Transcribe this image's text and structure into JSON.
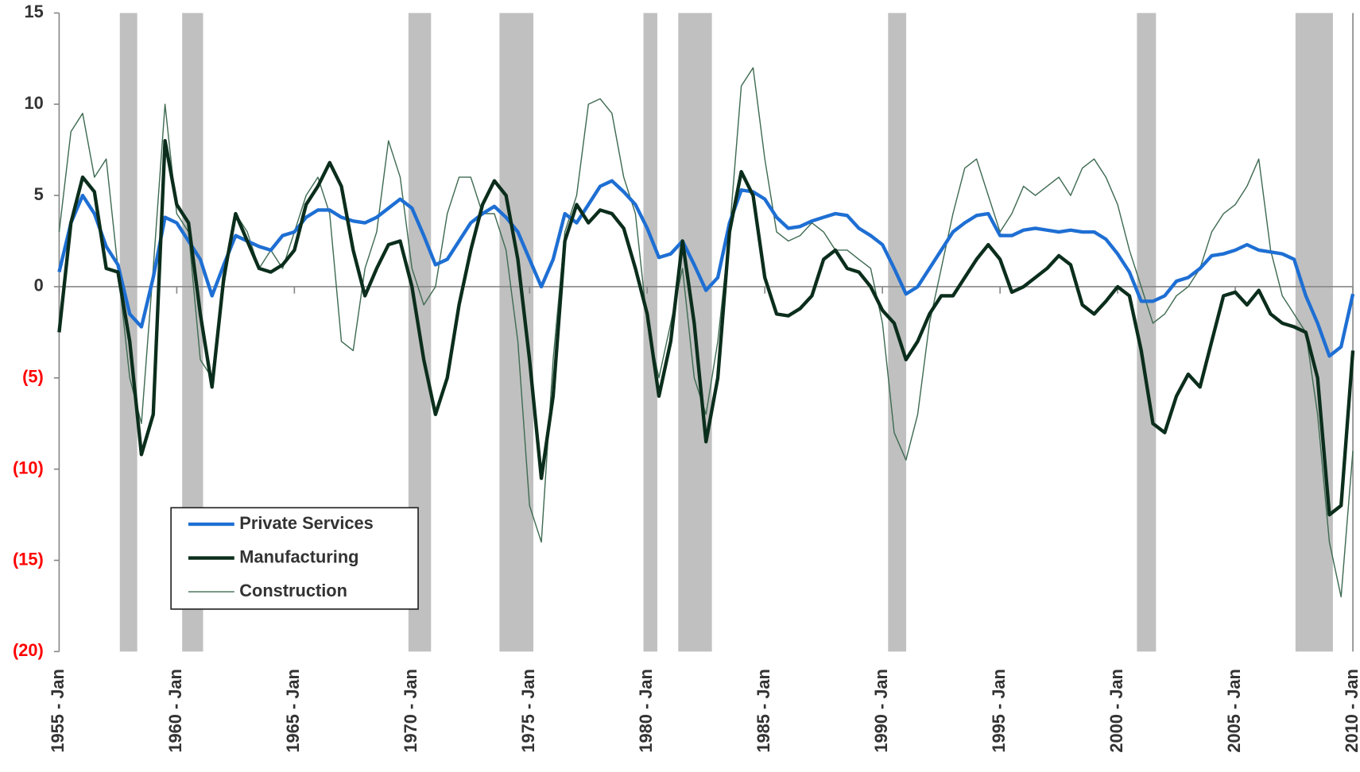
{
  "chart_data": {
    "type": "line",
    "x": [
      1955,
      1955.5,
      1956,
      1956.5,
      1957,
      1957.5,
      1958,
      1958.5,
      1959,
      1959.5,
      1960,
      1960.5,
      1961,
      1961.5,
      1962,
      1962.5,
      1963,
      1963.5,
      1964,
      1964.5,
      1965,
      1965.5,
      1966,
      1966.5,
      1967,
      1967.5,
      1968,
      1968.5,
      1969,
      1969.5,
      1970,
      1970.5,
      1971,
      1971.5,
      1972,
      1972.5,
      1973,
      1973.5,
      1974,
      1974.5,
      1975,
      1975.5,
      1976,
      1976.5,
      1977,
      1977.5,
      1978,
      1978.5,
      1979,
      1979.5,
      1980,
      1980.5,
      1981,
      1981.5,
      1982,
      1982.5,
      1983,
      1983.5,
      1984,
      1984.5,
      1985,
      1985.5,
      1986,
      1986.5,
      1987,
      1987.5,
      1988,
      1988.5,
      1989,
      1989.5,
      1990,
      1990.5,
      1991,
      1991.5,
      1992,
      1992.5,
      1993,
      1993.5,
      1994,
      1994.5,
      1995,
      1995.5,
      1996,
      1996.5,
      1997,
      1997.5,
      1998,
      1998.5,
      1999,
      1999.5,
      2000,
      2000.5,
      2001,
      2001.5,
      2002,
      2002.5,
      2003,
      2003.5,
      2004,
      2004.5,
      2005,
      2005.5,
      2006,
      2006.5,
      2007,
      2007.5,
      2008,
      2008.5,
      2009,
      2009.5,
      2010
    ],
    "series": [
      {
        "name": "Private Services",
        "color": "#1e6fd3",
        "width": 4,
        "values": [
          0.8,
          3.5,
          5.0,
          4.0,
          2.2,
          1.2,
          -1.5,
          -2.2,
          0.5,
          3.8,
          3.5,
          2.5,
          1.5,
          -0.5,
          1.2,
          2.8,
          2.5,
          2.2,
          2.0,
          2.8,
          3.0,
          3.8,
          4.2,
          4.2,
          3.8,
          3.6,
          3.5,
          3.8,
          4.3,
          4.8,
          4.3,
          2.8,
          1.2,
          1.5,
          2.5,
          3.5,
          4.0,
          4.4,
          3.8,
          3.0,
          1.5,
          0.0,
          1.5,
          4.0,
          3.5,
          4.5,
          5.5,
          5.8,
          5.2,
          4.5,
          3.2,
          1.6,
          1.8,
          2.5,
          1.2,
          -0.2,
          0.5,
          3.5,
          5.3,
          5.2,
          4.8,
          3.8,
          3.2,
          3.3,
          3.6,
          3.8,
          4.0,
          3.9,
          3.2,
          2.8,
          2.3,
          1.0,
          -0.4,
          0.0,
          1.0,
          2.0,
          3.0,
          3.5,
          3.9,
          4.0,
          2.8,
          2.8,
          3.1,
          3.2,
          3.1,
          3.0,
          3.1,
          3.0,
          3.0,
          2.6,
          1.8,
          0.8,
          -0.8,
          -0.8,
          -0.5,
          0.3,
          0.5,
          1.0,
          1.7,
          1.8,
          2.0,
          2.3,
          2.0,
          1.9,
          1.8,
          1.5,
          -0.5,
          -2.0,
          -3.8,
          -3.3,
          -0.4
        ]
      },
      {
        "name": "Manufacturing",
        "color": "#0b2e1c",
        "width": 4,
        "values": [
          -2.5,
          3.5,
          6.0,
          5.2,
          1.0,
          0.8,
          -3.0,
          -9.2,
          -7.0,
          8.0,
          4.5,
          3.5,
          -1.5,
          -5.5,
          0.5,
          4.0,
          2.5,
          1.0,
          0.8,
          1.2,
          2.0,
          4.5,
          5.5,
          6.8,
          5.5,
          2.0,
          -0.5,
          1.0,
          2.3,
          2.5,
          0.0,
          -4.0,
          -7.0,
          -5.0,
          -1.0,
          2.0,
          4.5,
          5.8,
          5.0,
          1.5,
          -4.0,
          -10.5,
          -6.0,
          2.5,
          4.5,
          3.5,
          4.2,
          4.0,
          3.2,
          1.0,
          -1.5,
          -6.0,
          -3.0,
          2.5,
          -2.0,
          -8.5,
          -5.0,
          3.0,
          6.3,
          5.0,
          0.5,
          -1.5,
          -1.6,
          -1.2,
          -0.5,
          1.5,
          2.0,
          1.0,
          0.8,
          0.0,
          -1.3,
          -2.0,
          -4.0,
          -3.0,
          -1.5,
          -0.5,
          -0.5,
          0.5,
          1.5,
          2.3,
          1.5,
          -0.3,
          0.0,
          0.5,
          1.0,
          1.7,
          1.2,
          -1.0,
          -1.5,
          -0.8,
          0.0,
          -0.5,
          -3.5,
          -7.5,
          -8.0,
          -6.0,
          -4.8,
          -5.5,
          -3.0,
          -0.5,
          -0.3,
          -1.0,
          -0.2,
          -1.5,
          -2.0,
          -2.2,
          -2.5,
          -5.0,
          -12.5,
          -12.0,
          -3.5
        ]
      },
      {
        "name": "Construction",
        "color": "#3f6b52",
        "width": 1.3,
        "values": [
          3,
          8.5,
          9.5,
          6,
          7,
          1,
          -5,
          -7.5,
          1,
          10,
          4,
          3,
          -4,
          -5,
          0,
          4,
          3,
          1,
          2,
          1,
          3,
          5,
          6,
          4,
          -3,
          -3.5,
          1,
          3,
          8,
          6,
          1,
          -1,
          0,
          4,
          6,
          6,
          4,
          4,
          2,
          -3,
          -12,
          -14,
          -4,
          3,
          5,
          10,
          10.3,
          9.5,
          6,
          4,
          -2,
          -5,
          -2,
          1,
          -5,
          -7,
          -3,
          3,
          11,
          12,
          7,
          3,
          2.5,
          2.8,
          3.5,
          3,
          2,
          2,
          1.5,
          1,
          -2,
          -8,
          -9.5,
          -7,
          -2,
          1,
          4,
          6.5,
          7,
          5,
          3,
          4,
          5.5,
          5,
          5.5,
          6,
          5,
          6.5,
          7,
          6,
          4.5,
          2,
          0,
          -2,
          -1.5,
          -0.5,
          0,
          1,
          3,
          4,
          4.5,
          5.5,
          7,
          2,
          -0.5,
          -1.5,
          -2.5,
          -7,
          -14,
          -17,
          -9
        ]
      }
    ],
    "recessions": [
      [
        1957.58,
        1958.32
      ],
      [
        1960.23,
        1961.12
      ],
      [
        1969.85,
        1970.81
      ],
      [
        1973.72,
        1975.16
      ],
      [
        1979.84,
        1980.43
      ],
      [
        1981.32,
        1982.75
      ],
      [
        1990.24,
        1991.01
      ],
      [
        2000.82,
        2001.63
      ],
      [
        2007.56,
        2009.15
      ]
    ],
    "recession_color": "#c0c0c0",
    "xlim": [
      1955,
      2010
    ],
    "xticks": [
      {
        "value": 1955,
        "label": "1955 - Jan"
      },
      {
        "value": 1960,
        "label": "1960 - Jan"
      },
      {
        "value": 1965,
        "label": "1965 - Jan"
      },
      {
        "value": 1970,
        "label": "1970 - Jan"
      },
      {
        "value": 1975,
        "label": "1975 - Jan"
      },
      {
        "value": 1980,
        "label": "1980 - Jan"
      },
      {
        "value": 1985,
        "label": "1985 - Jan"
      },
      {
        "value": 1990,
        "label": "1990 - Jan"
      },
      {
        "value": 1995,
        "label": "1995 - Jan"
      },
      {
        "value": 2000,
        "label": "2000 - Jan"
      },
      {
        "value": 2005,
        "label": "2005 - Jan"
      },
      {
        "value": 2010,
        "label": "2010 - Jan"
      }
    ],
    "ylim": [
      -20,
      15
    ],
    "yticks": [
      {
        "value": -20,
        "label": "(20)"
      },
      {
        "value": -15,
        "label": "(15)"
      },
      {
        "value": -10,
        "label": "(10)"
      },
      {
        "value": -5,
        "label": "(5)"
      },
      0,
      5,
      10,
      15
    ],
    "negative_tick_color": "#ff0000",
    "legend": "lower-left"
  }
}
